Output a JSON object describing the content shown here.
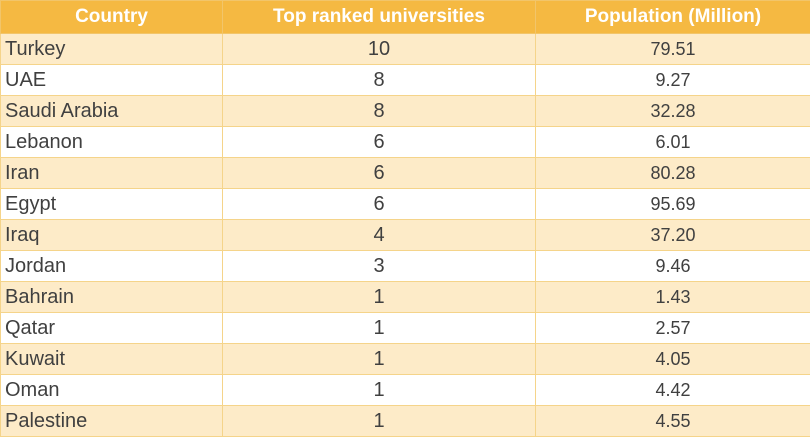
{
  "table": {
    "headers": [
      "Country",
      "Top ranked universities",
      "Population (Million)"
    ],
    "rows": [
      {
        "country": "Turkey",
        "universities": "10",
        "population": "79.51"
      },
      {
        "country": "UAE",
        "universities": "8",
        "population": "9.27"
      },
      {
        "country": "Saudi Arabia",
        "universities": "8",
        "population": "32.28"
      },
      {
        "country": "Lebanon",
        "universities": "6",
        "population": "6.01"
      },
      {
        "country": "Iran",
        "universities": "6",
        "population": "80.28"
      },
      {
        "country": "Egypt",
        "universities": "6",
        "population": "95.69"
      },
      {
        "country": "Iraq",
        "universities": "4",
        "population": "37.20"
      },
      {
        "country": "Jordan",
        "universities": "3",
        "population": "9.46"
      },
      {
        "country": "Bahrain",
        "universities": "1",
        "population": "1.43"
      },
      {
        "country": "Qatar",
        "universities": "1",
        "population": "2.57"
      },
      {
        "country": "Kuwait",
        "universities": "1",
        "population": "4.05"
      },
      {
        "country": "Oman",
        "universities": "1",
        "population": "4.42"
      },
      {
        "country": "Palestine",
        "universities": "1",
        "population": "4.55"
      }
    ]
  },
  "colors": {
    "header_bg": "#f5b942",
    "header_text": "#ffffff",
    "row_alt_bg": "#fdebc8",
    "row_bg": "#ffffff",
    "text": "#404040"
  }
}
